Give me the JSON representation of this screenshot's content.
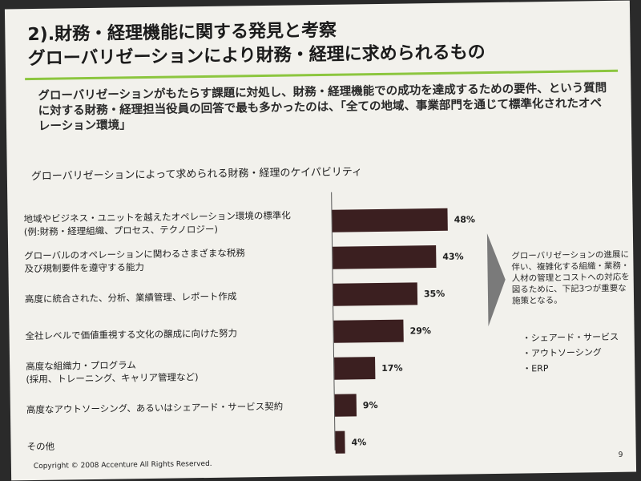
{
  "slide": {
    "title_line1": "2).財務・経理機能に関する発見と考察",
    "title_line2": "グローバリゼーションにより財務・経理に求められるもの",
    "lead": "グローバリゼーションがもたらす課題に対処し、財務・経理機能での成功を達成するための要件、という質問に対する財務・経理担当役員の回答で最も多かったのは、「全ての地域、事業部門を通じて標準化されたオペレーション環境」",
    "side_text": "グローバリゼーションの進展に伴い、複雑化する組織・業務・人材の管理とコストへの対応を図るために、下記3つが重要な施策となる。",
    "side_items": [
      "シェアード・サービス",
      "アウトソーシング",
      "ERP"
    ],
    "footer": "Copyright © 2008 Accenture All Rights Reserved.",
    "page_number": "9"
  },
  "colors": {
    "bar": "#3b1f20",
    "accent_rule": "#8cc63f",
    "background": "#f2f1ec"
  },
  "chart_data": {
    "type": "bar",
    "orientation": "horizontal",
    "title": "グローバリゼーションによって求められる財務・経理のケイパビリティ",
    "categories": [
      "地域やビジネス・ユニットを越えたオペレーション環境の標準化\n(例:財務・経理組織、プロセス、テクノロジー)",
      "グローバルのオペレーションに関わるさまざまな税務\n及び規制要件を遵守する能力",
      "高度に統合された、分析、業績管理、レポート作成",
      "全社レベルで価値重視する文化の醸成に向けた努力",
      "高度な組織力・プログラム\n(採用、トレーニング、キャリア管理など)",
      "高度なアウトソーシング、あるいはシェアード・サービス契約",
      "その他"
    ],
    "values": [
      48,
      43,
      35,
      29,
      17,
      9,
      4
    ],
    "value_labels": [
      "48%",
      "43%",
      "35%",
      "29%",
      "17%",
      "9%",
      "4%"
    ],
    "xlim": [
      0,
      50
    ],
    "unit": "%"
  }
}
